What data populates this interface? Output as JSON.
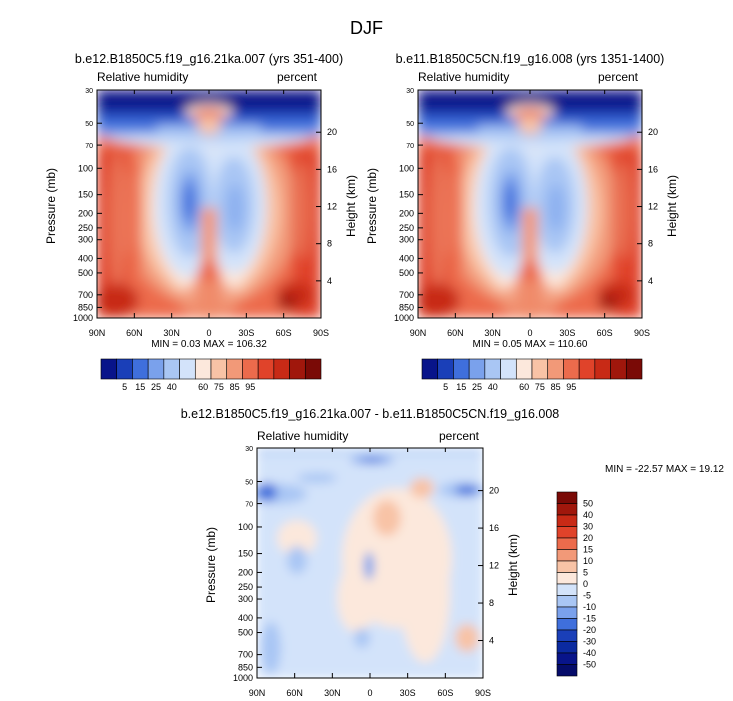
{
  "page": {
    "title": "DJF"
  },
  "chart_data": [
    {
      "type": "heatmap",
      "title": "b.e12.B1850C5.f19_g16.21ka.007 (yrs 351-400)",
      "left_label": "Relative humidity",
      "right_label": "percent",
      "ylabel": "Pressure (mb)",
      "ylabel_right": "Height (km)",
      "x_ticks": [
        "90N",
        "60N",
        "30N",
        "0",
        "30S",
        "60S",
        "90S"
      ],
      "y_ticks": [
        "30",
        "50",
        "70",
        "100",
        "150",
        "200",
        "250",
        "300",
        "400",
        "500",
        "700",
        "850",
        "1000"
      ],
      "y_ticks_right": [
        "20",
        "16",
        "12",
        "8",
        "4"
      ],
      "min_max_text": "MIN =  0.03   MAX = 106.32",
      "min": 0.03,
      "max": 106.32,
      "colorbar_levels": [
        "5",
        "15",
        "25",
        "40",
        "60",
        "75",
        "85",
        "95"
      ]
    },
    {
      "type": "heatmap",
      "title": "b.e11.B1850C5CN.f19_g16.008 (yrs 1351-1400)",
      "left_label": "Relative humidity",
      "right_label": "percent",
      "ylabel": "Pressure (mb)",
      "ylabel_right": "Height (km)",
      "x_ticks": [
        "90N",
        "60N",
        "30N",
        "0",
        "30S",
        "60S",
        "90S"
      ],
      "y_ticks": [
        "30",
        "50",
        "70",
        "100",
        "150",
        "200",
        "250",
        "300",
        "400",
        "500",
        "700",
        "850",
        "1000"
      ],
      "y_ticks_right": [
        "20",
        "16",
        "12",
        "8",
        "4"
      ],
      "min_max_text": "MIN =  0.05   MAX = 110.60",
      "min": 0.05,
      "max": 110.6,
      "colorbar_levels": [
        "5",
        "15",
        "25",
        "40",
        "60",
        "75",
        "85",
        "95"
      ]
    },
    {
      "type": "heatmap",
      "title": "b.e12.B1850C5.f19_g16.21ka.007 - b.e11.B1850C5CN.f19_g16.008",
      "left_label": "Relative humidity",
      "right_label": "percent",
      "ylabel": "Pressure (mb)",
      "ylabel_right": "Height (km)",
      "x_ticks": [
        "90N",
        "60N",
        "30N",
        "0",
        "30S",
        "60S",
        "90S"
      ],
      "y_ticks": [
        "30",
        "50",
        "70",
        "100",
        "150",
        "200",
        "250",
        "300",
        "400",
        "500",
        "700",
        "850",
        "1000"
      ],
      "y_ticks_right": [
        "20",
        "16",
        "12",
        "8",
        "4"
      ],
      "min_max_text": "MIN = -22.57   MAX =  19.12",
      "min": -22.57,
      "max": 19.12,
      "colorbar_levels": [
        "50",
        "40",
        "30",
        "20",
        "15",
        "10",
        "5",
        "0",
        "-5",
        "-10",
        "-15",
        "-20",
        "-30",
        "-40",
        "-50"
      ]
    }
  ],
  "colors": {
    "abs_scale": [
      "#08148a",
      "#1a3fb8",
      "#3f6fdc",
      "#7aa1ec",
      "#a9c6f4",
      "#d3e3fa",
      "#fce8dc",
      "#f8c3a6",
      "#f29978",
      "#ec6b4c",
      "#e0432a",
      "#c82a16",
      "#a0170c",
      "#7a0a06"
    ],
    "diff_scale": [
      "#7a0a06",
      "#a0170c",
      "#c82a16",
      "#e0432a",
      "#ec6b4c",
      "#f29978",
      "#f8c3a6",
      "#fce8dc",
      "#d3e3fa",
      "#a9c6f4",
      "#7aa1ec",
      "#3f6fdc",
      "#1a3fb8",
      "#0b2aa0",
      "#08148a",
      "#050c6a"
    ]
  }
}
